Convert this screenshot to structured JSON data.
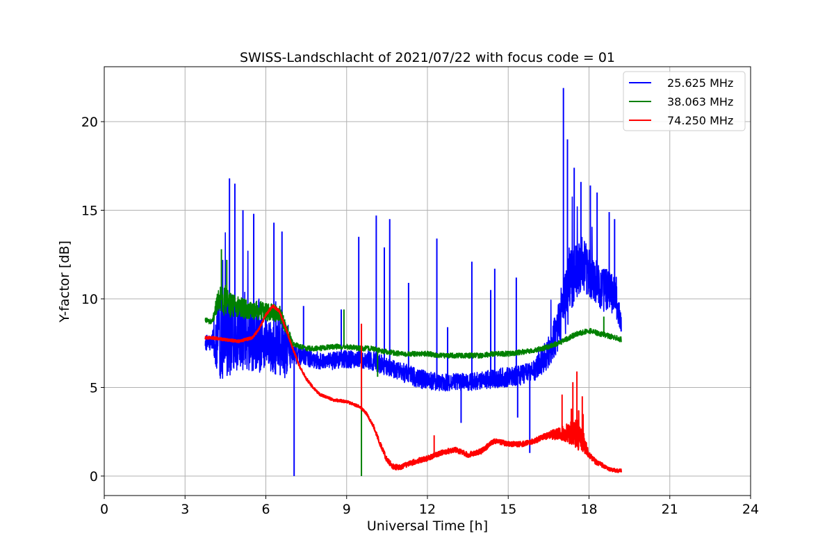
{
  "chart_data": {
    "type": "line",
    "title": "SWISS-Landschlacht of 2021/07/22 with focus code = 01",
    "xlabel": "Universal Time [h]",
    "ylabel": "Y-factor [dB]",
    "xlim": [
      0,
      24
    ],
    "ylim": [
      -1.1,
      23.1
    ],
    "xticks": [
      0,
      3,
      6,
      9,
      12,
      15,
      18,
      21,
      24
    ],
    "yticks": [
      0,
      5,
      10,
      15,
      20
    ],
    "grid": true,
    "legend_position": "top-right",
    "series": [
      {
        "name": "25.625 MHz",
        "color": "#0000ff",
        "x": [
          3.75,
          4.0,
          4.25,
          4.5,
          4.75,
          5.0,
          5.25,
          5.5,
          5.75,
          6.0,
          6.25,
          6.5,
          6.75,
          7.0,
          7.25,
          7.5,
          7.75,
          8.0,
          8.5,
          9.0,
          9.5,
          10.0,
          10.5,
          11.0,
          11.5,
          12.0,
          12.5,
          13.0,
          13.5,
          14.0,
          14.5,
          15.0,
          15.5,
          16.0,
          16.5,
          17.0,
          17.25,
          17.5,
          17.75,
          18.0,
          18.25,
          18.5,
          18.75,
          19.0,
          19.2
        ],
        "y": [
          7.5,
          7.6,
          7.8,
          7.9,
          8.0,
          7.9,
          7.8,
          7.6,
          7.5,
          7.4,
          7.3,
          7.2,
          7.0,
          6.9,
          6.8,
          6.7,
          6.6,
          6.5,
          6.5,
          6.6,
          6.6,
          6.5,
          6.2,
          5.9,
          5.6,
          5.4,
          5.3,
          5.3,
          5.3,
          5.4,
          5.5,
          5.6,
          5.7,
          6.0,
          7.0,
          9.0,
          10.5,
          11.5,
          12.0,
          11.5,
          11.0,
          10.5,
          10.5,
          10.0,
          8.5
        ],
        "noise_amplitude": [
          0.8,
          1.0,
          4.5,
          5.0,
          4.5,
          4.0,
          3.5,
          3.5,
          3.5,
          3.0,
          3.0,
          3.5,
          3.0,
          1.2,
          1.0,
          1.0,
          1.0,
          1.0,
          1.0,
          1.0,
          1.0,
          1.1,
          1.1,
          1.1,
          1.1,
          1.1,
          1.0,
          1.0,
          1.0,
          1.0,
          1.1,
          1.1,
          1.1,
          1.2,
          1.8,
          3.0,
          4.0,
          3.5,
          3.0,
          2.8,
          2.5,
          2.5,
          2.3,
          2.0,
          1.0
        ],
        "spikes": [
          {
            "x": 4.65,
            "y": 16.8
          },
          {
            "x": 4.85,
            "y": 16.5
          },
          {
            "x": 5.15,
            "y": 15.0
          },
          {
            "x": 5.55,
            "y": 14.8
          },
          {
            "x": 6.3,
            "y": 14.3
          },
          {
            "x": 6.6,
            "y": 13.8
          },
          {
            "x": 7.05,
            "y": 0.0
          },
          {
            "x": 7.4,
            "y": 9.6
          },
          {
            "x": 8.8,
            "y": 9.4
          },
          {
            "x": 9.45,
            "y": 13.5
          },
          {
            "x": 10.1,
            "y": 14.7
          },
          {
            "x": 10.4,
            "y": 12.9
          },
          {
            "x": 10.6,
            "y": 14.5
          },
          {
            "x": 11.3,
            "y": 10.9
          },
          {
            "x": 12.35,
            "y": 13.4
          },
          {
            "x": 12.75,
            "y": 8.4
          },
          {
            "x": 13.25,
            "y": 3.0
          },
          {
            "x": 13.65,
            "y": 12.1
          },
          {
            "x": 14.35,
            "y": 10.5
          },
          {
            "x": 14.5,
            "y": 11.7
          },
          {
            "x": 15.3,
            "y": 11.2
          },
          {
            "x": 15.35,
            "y": 3.3
          },
          {
            "x": 15.8,
            "y": 1.3
          },
          {
            "x": 17.05,
            "y": 21.9
          },
          {
            "x": 17.2,
            "y": 19.0
          },
          {
            "x": 17.45,
            "y": 17.4
          },
          {
            "x": 17.7,
            "y": 16.6
          },
          {
            "x": 18.05,
            "y": 16.4
          },
          {
            "x": 18.3,
            "y": 16.0
          },
          {
            "x": 18.75,
            "y": 14.9
          },
          {
            "x": 18.95,
            "y": 14.5
          }
        ]
      },
      {
        "name": "38.063 MHz",
        "color": "#008000",
        "x": [
          3.75,
          4.0,
          4.25,
          4.5,
          4.75,
          5.0,
          5.5,
          6.0,
          6.5,
          7.0,
          7.25,
          7.5,
          8.0,
          8.5,
          9.0,
          9.5,
          10.0,
          10.5,
          11.0,
          11.5,
          12.0,
          12.5,
          13.0,
          13.5,
          14.0,
          14.5,
          15.0,
          15.5,
          16.0,
          16.5,
          17.0,
          17.5,
          18.0,
          18.5,
          19.0,
          19.2
        ],
        "y": [
          8.8,
          8.7,
          10.0,
          9.8,
          9.6,
          9.5,
          9.4,
          9.3,
          9.2,
          7.5,
          7.3,
          7.2,
          7.2,
          7.3,
          7.3,
          7.2,
          7.2,
          7.0,
          6.9,
          6.9,
          6.9,
          6.8,
          6.8,
          6.8,
          6.8,
          6.9,
          6.9,
          7.0,
          7.1,
          7.3,
          7.6,
          8.0,
          8.2,
          8.0,
          7.8,
          7.7
        ],
        "noise_amplitude": [
          0.3,
          0.3,
          1.4,
          1.6,
          1.4,
          1.2,
          1.1,
          1.1,
          1.0,
          0.4,
          0.3,
          0.3,
          0.3,
          0.3,
          0.3,
          0.3,
          0.3,
          0.3,
          0.3,
          0.3,
          0.3,
          0.3,
          0.3,
          0.3,
          0.3,
          0.3,
          0.3,
          0.3,
          0.3,
          0.3,
          0.3,
          0.3,
          0.3,
          0.3,
          0.3,
          0.3
        ],
        "spikes": [
          {
            "x": 4.35,
            "y": 12.8
          },
          {
            "x": 4.55,
            "y": 12.2
          },
          {
            "x": 8.9,
            "y": 9.4
          },
          {
            "x": 9.55,
            "y": 0.0
          },
          {
            "x": 10.15,
            "y": 5.6
          },
          {
            "x": 18.55,
            "y": 9.0
          }
        ]
      },
      {
        "name": "74.250 MHz",
        "color": "#ff0000",
        "x": [
          3.75,
          4.0,
          4.5,
          5.0,
          5.5,
          5.75,
          6.0,
          6.25,
          6.5,
          6.75,
          7.0,
          7.25,
          7.5,
          7.75,
          8.0,
          8.5,
          9.0,
          9.5,
          9.75,
          10.0,
          10.25,
          10.5,
          10.75,
          11.0,
          11.5,
          12.0,
          12.5,
          13.0,
          13.5,
          14.0,
          14.5,
          15.0,
          15.5,
          16.0,
          16.5,
          17.0,
          17.5,
          17.75,
          18.0,
          18.25,
          18.5,
          18.75,
          19.0,
          19.2
        ],
        "y": [
          7.8,
          7.8,
          7.7,
          7.6,
          7.8,
          8.3,
          9.1,
          9.6,
          9.3,
          8.3,
          7.2,
          6.2,
          5.5,
          5.0,
          4.6,
          4.3,
          4.2,
          3.9,
          3.5,
          2.8,
          1.8,
          0.9,
          0.5,
          0.5,
          0.8,
          1.0,
          1.3,
          1.5,
          1.2,
          1.4,
          2.0,
          1.8,
          1.8,
          2.0,
          2.3,
          2.4,
          2.4,
          2.0,
          1.2,
          0.8,
          0.6,
          0.4,
          0.3,
          0.3
        ],
        "noise_amplitude": [
          0.15,
          0.15,
          0.15,
          0.15,
          0.15,
          0.15,
          0.15,
          0.15,
          0.15,
          0.15,
          0.15,
          0.15,
          0.15,
          0.15,
          0.15,
          0.15,
          0.15,
          0.15,
          0.15,
          0.2,
          0.25,
          0.3,
          0.3,
          0.3,
          0.3,
          0.3,
          0.3,
          0.3,
          0.3,
          0.3,
          0.3,
          0.3,
          0.3,
          0.3,
          0.4,
          0.8,
          1.6,
          1.4,
          0.3,
          0.3,
          0.25,
          0.2,
          0.2,
          0.2
        ],
        "spikes": [
          {
            "x": 9.55,
            "y": 8.6
          },
          {
            "x": 12.25,
            "y": 2.3
          },
          {
            "x": 17.0,
            "y": 4.6
          },
          {
            "x": 17.4,
            "y": 5.3
          },
          {
            "x": 17.55,
            "y": 5.9
          },
          {
            "x": 17.75,
            "y": 4.5
          }
        ]
      }
    ]
  }
}
